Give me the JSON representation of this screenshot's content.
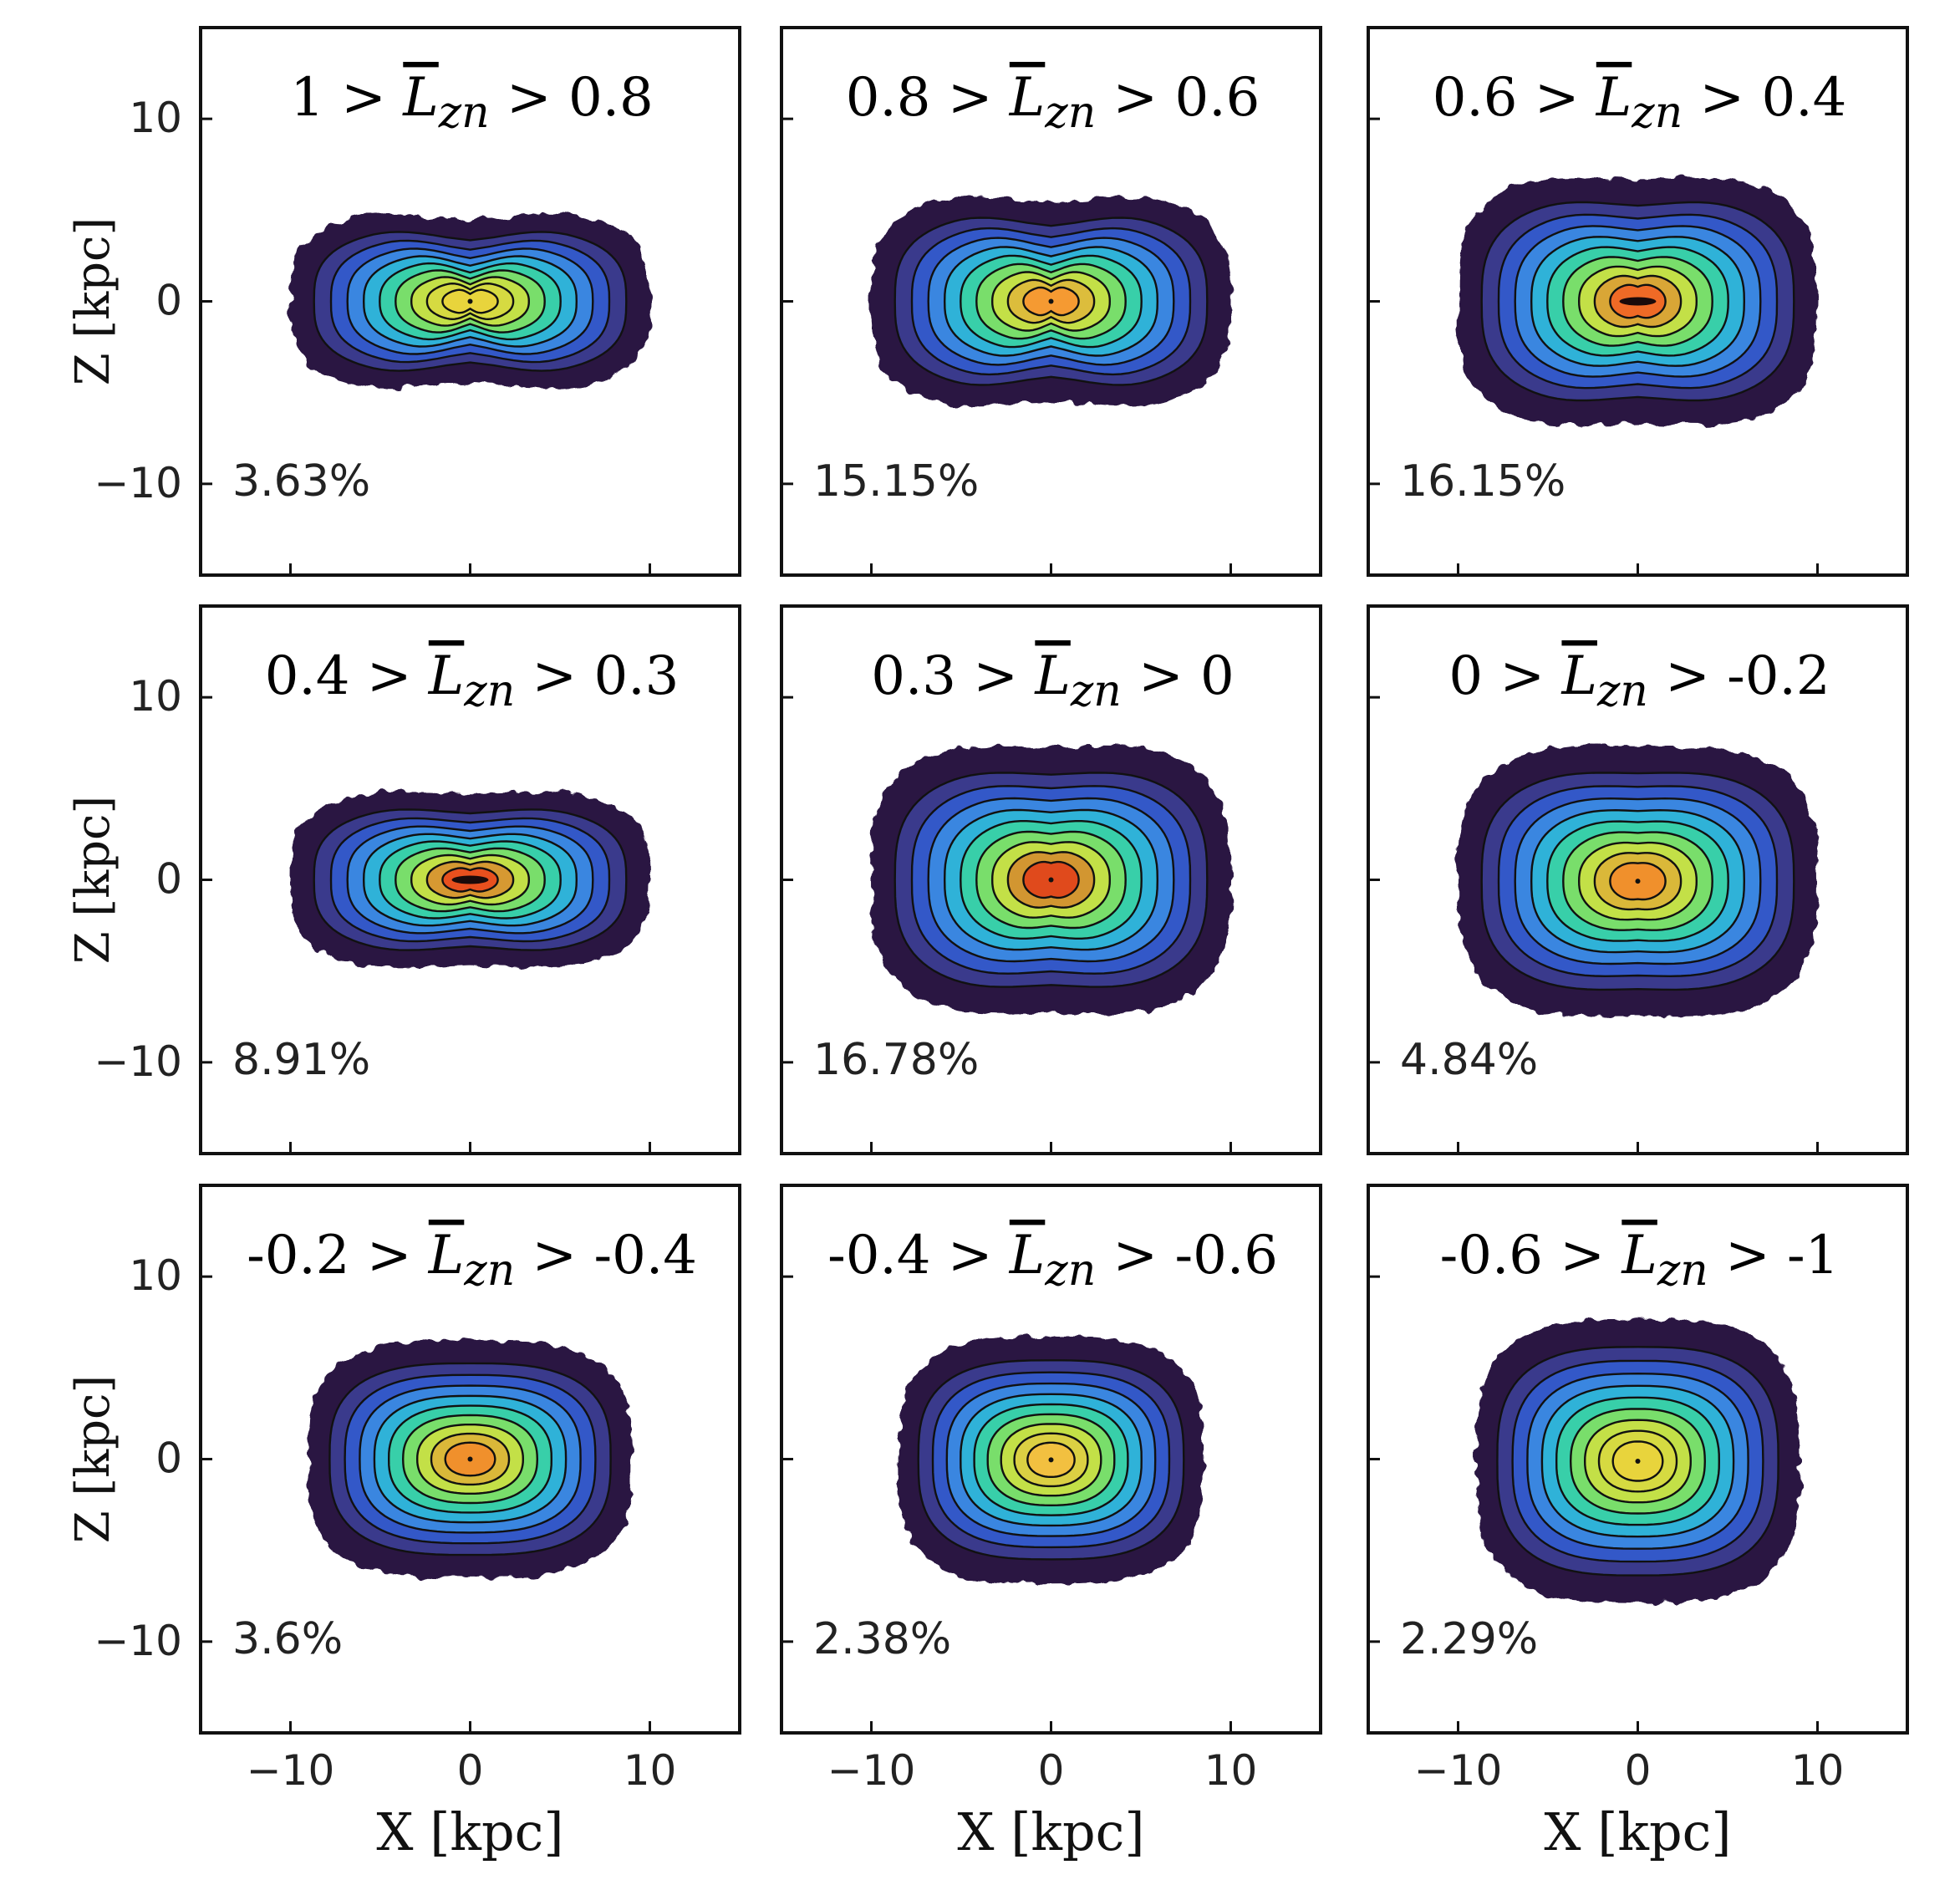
{
  "figure": {
    "xlabel": "X [kpc]",
    "ylabel": "Z [kpc]",
    "symbol": "L",
    "subscript": "zn"
  },
  "chart_data": [
    {
      "type": "heatmap",
      "title": {
        "left": "1 >",
        "right": "> 0.8"
      },
      "range": [
        0.8,
        1
      ],
      "percent": "3.63%",
      "xlim": [
        -15,
        15
      ],
      "ylim": [
        -15,
        15
      ],
      "xticks": [
        -10,
        0,
        10
      ],
      "yticks": [
        -10,
        0,
        10
      ],
      "xlabel": "",
      "ylabel": "Z [kpc]",
      "extent_x": [
        -10,
        10
      ],
      "extent_z": [
        -5,
        5
      ],
      "peak": "#e8d43c",
      "waist": 0.35,
      "hole": false
    },
    {
      "type": "heatmap",
      "title": {
        "left": "0.8 >",
        "right": "> 0.6"
      },
      "range": [
        0.6,
        0.8
      ],
      "percent": "15.15%",
      "xlim": [
        -15,
        15
      ],
      "ylim": [
        -15,
        15
      ],
      "xticks": [
        -10,
        0,
        10
      ],
      "yticks": [
        -10,
        0,
        10
      ],
      "xlabel": "",
      "ylabel": "",
      "extent_x": [
        -10,
        10
      ],
      "extent_z": [
        -6,
        6
      ],
      "peak": "#f59a32",
      "waist": 0.3,
      "hole": false
    },
    {
      "type": "heatmap",
      "title": {
        "left": "0.6 >",
        "right": "> 0.4"
      },
      "range": [
        0.4,
        0.6
      ],
      "percent": "16.15%",
      "xlim": [
        -15,
        15
      ],
      "ylim": [
        -15,
        15
      ],
      "xticks": [
        -10,
        0,
        10
      ],
      "yticks": [
        -10,
        0,
        10
      ],
      "xlabel": "",
      "ylabel": "",
      "extent_x": [
        -10,
        10
      ],
      "extent_z": [
        -7,
        7
      ],
      "peak": "#ef6a26",
      "waist": 0.15,
      "hole": true
    },
    {
      "type": "heatmap",
      "title": {
        "left": "0.4 >",
        "right": "> 0.3"
      },
      "range": [
        0.3,
        0.4
      ],
      "percent": "8.91%",
      "xlim": [
        -15,
        15
      ],
      "ylim": [
        -15,
        15
      ],
      "xticks": [
        -10,
        0,
        10
      ],
      "yticks": [
        -10,
        0,
        10
      ],
      "xlabel": "",
      "ylabel": "Z [kpc]",
      "extent_x": [
        -10,
        10
      ],
      "extent_z": [
        -5,
        5
      ],
      "peak": "#e8501e",
      "waist": 0.2,
      "hole": true
    },
    {
      "type": "heatmap",
      "title": {
        "left": "0.3 >",
        "right": "> 0"
      },
      "range": [
        0,
        0.3
      ],
      "percent": "16.78%",
      "xlim": [
        -15,
        15
      ],
      "ylim": [
        -15,
        15
      ],
      "xticks": [
        -10,
        0,
        10
      ],
      "yticks": [
        -10,
        0,
        10
      ],
      "xlabel": "",
      "ylabel": "",
      "extent_x": [
        -10,
        10
      ],
      "extent_z": [
        -7.5,
        7.5
      ],
      "peak": "#e04a1c",
      "waist": 0.1,
      "hole": false
    },
    {
      "type": "heatmap",
      "title": {
        "left": "0 >",
        "right": "> -0.2"
      },
      "range": [
        -0.2,
        0
      ],
      "percent": "4.84%",
      "xlim": [
        -15,
        15
      ],
      "ylim": [
        -15,
        15
      ],
      "xticks": [
        -10,
        0,
        10
      ],
      "yticks": [
        -10,
        0,
        10
      ],
      "xlabel": "",
      "ylabel": "",
      "extent_x": [
        -10,
        10
      ],
      "extent_z": [
        -8,
        7
      ],
      "peak": "#f0902c",
      "waist": 0.05,
      "hole": false
    },
    {
      "type": "heatmap",
      "title": {
        "left": "-0.2 >",
        "right": "> -0.4"
      },
      "range": [
        -0.4,
        -0.2
      ],
      "percent": "3.6%",
      "xlim": [
        -15,
        15
      ],
      "ylim": [
        -15,
        15
      ],
      "xticks": [
        -10,
        0,
        10
      ],
      "yticks": [
        -10,
        0,
        10
      ],
      "xlabel": "X [kpc]",
      "ylabel": "Z [kpc]",
      "extent_x": [
        -9,
        9
      ],
      "extent_z": [
        -6.5,
        6.5
      ],
      "peak": "#f0902c",
      "waist": 0,
      "hole": false
    },
    {
      "type": "heatmap",
      "title": {
        "left": "-0.4 >",
        "right": "> -0.6"
      },
      "range": [
        -0.6,
        -0.4
      ],
      "percent": "2.38%",
      "xlim": [
        -15,
        15
      ],
      "ylim": [
        -15,
        15
      ],
      "xticks": [
        -10,
        0,
        10
      ],
      "yticks": [
        -10,
        0,
        10
      ],
      "xlabel": "X [kpc]",
      "ylabel": "",
      "extent_x": [
        -8.5,
        8.5
      ],
      "extent_z": [
        -7,
        6.5
      ],
      "peak": "#f2c040",
      "waist": 0,
      "hole": false
    },
    {
      "type": "heatmap",
      "title": {
        "left": "-0.6 >",
        "right": "> -1"
      },
      "range": [
        -1,
        -0.6
      ],
      "percent": "2.29%",
      "xlim": [
        -15,
        15
      ],
      "ylim": [
        -15,
        15
      ],
      "xticks": [
        -10,
        0,
        10
      ],
      "yticks": [
        -10,
        0,
        10
      ],
      "xlabel": "X [kpc]",
      "ylabel": "",
      "extent_x": [
        -9,
        9
      ],
      "extent_z": [
        -8.5,
        7
      ],
      "peak": "#e8d43c",
      "waist": 0,
      "hole": false
    }
  ]
}
